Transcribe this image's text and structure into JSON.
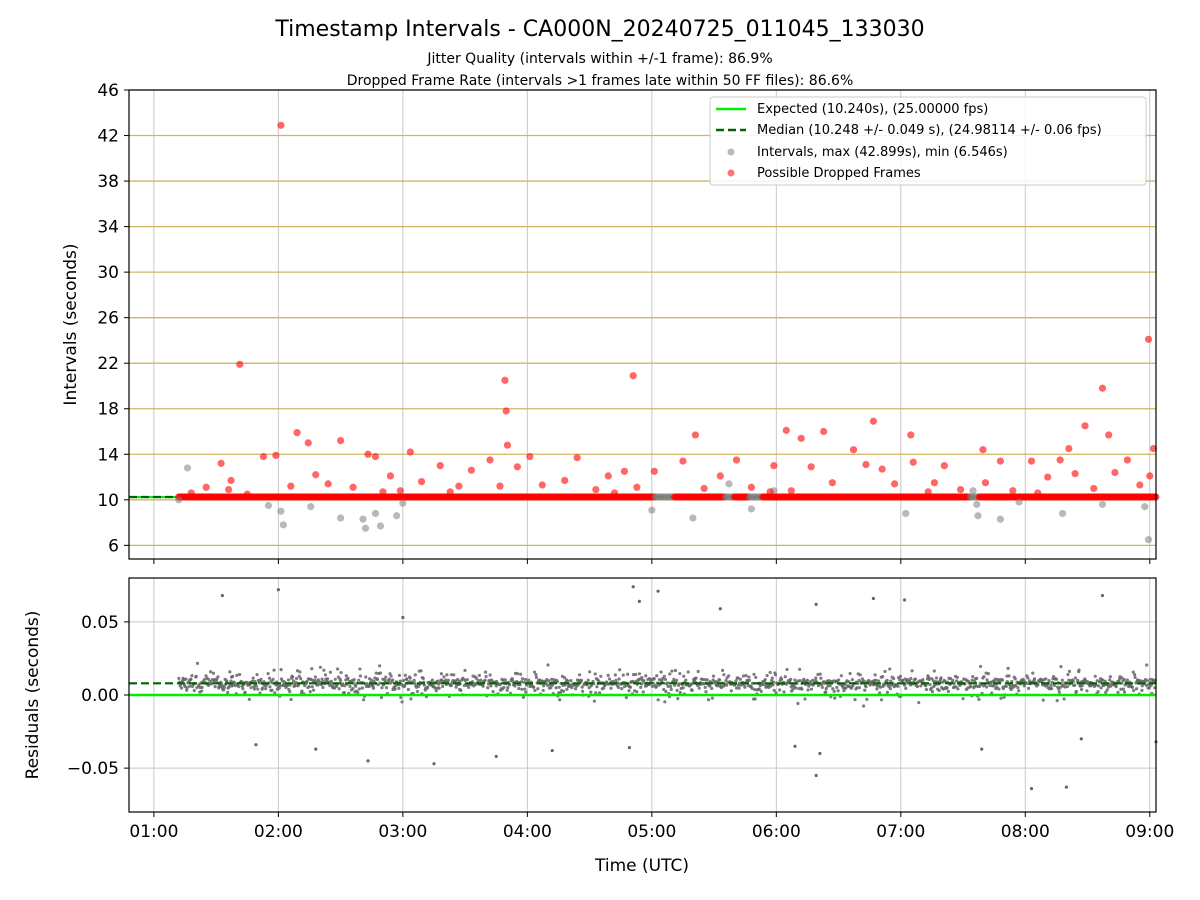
{
  "header": {
    "title": "Timestamp Intervals - CA000N_20240725_011045_133030",
    "subtitle_1": "Jitter Quality (intervals within +/-1 frame): 86.9%",
    "subtitle_2": "Dropped Frame Rate (intervals >1 frames late within 50 FF files): 86.6%"
  },
  "colors": {
    "expected": "#00ee00",
    "median": "#006400",
    "intervals": "#808080",
    "dropped": "#ff0000",
    "hgrid_top": "#d2b464",
    "grid": "#c8c8c8"
  },
  "chart_data": [
    {
      "type": "scatter",
      "title": "",
      "xlabel": "",
      "ylabel": "Intervals (seconds)",
      "x_unit": "hours UTC",
      "xlim": [
        0.8,
        9.05
      ],
      "ylim": [
        4.8,
        46
      ],
      "yticks": [
        6,
        10,
        14,
        18,
        22,
        26,
        30,
        34,
        38,
        42,
        46
      ],
      "xticks": [
        1,
        2,
        3,
        4,
        5,
        6,
        7,
        8,
        9
      ],
      "grid": true,
      "legend_position": "top-right",
      "legend": [
        "Expected (10.240s), (25.00000 fps)",
        "Median (10.248 +/- 0.049 s), (24.98114 +/- 0.06 fps)",
        "Intervals, max (42.899s), min (6.546s)",
        "Possible Dropped Frames"
      ],
      "expected_interval": 10.24,
      "median_interval": 10.248,
      "series": [
        {
          "name": "Possible Dropped Frames",
          "points": [
            [
              1.69,
              21.9
            ],
            [
              2.02,
              42.9
            ],
            [
              2.15,
              15.9
            ],
            [
              2.24,
              15.0
            ],
            [
              2.5,
              15.2
            ],
            [
              2.72,
              14.0
            ],
            [
              3.06,
              14.2
            ],
            [
              3.82,
              20.5
            ],
            [
              3.83,
              17.8
            ],
            [
              3.84,
              14.8
            ],
            [
              4.85,
              20.9
            ],
            [
              5.35,
              15.7
            ],
            [
              6.08,
              16.1
            ],
            [
              6.2,
              15.4
            ],
            [
              6.38,
              16.0
            ],
            [
              6.78,
              16.9
            ],
            [
              7.08,
              15.7
            ],
            [
              7.66,
              14.4
            ],
            [
              8.35,
              14.5
            ],
            [
              8.48,
              16.5
            ],
            [
              8.62,
              19.8
            ],
            [
              8.67,
              15.7
            ],
            [
              8.99,
              24.1
            ],
            [
              9.03,
              14.5
            ],
            [
              1.3,
              10.6
            ],
            [
              1.42,
              11.1
            ],
            [
              1.54,
              13.2
            ],
            [
              1.62,
              11.7
            ],
            [
              1.75,
              10.5
            ],
            [
              1.88,
              13.8
            ],
            [
              1.98,
              13.9
            ],
            [
              2.1,
              11.2
            ],
            [
              2.3,
              12.2
            ],
            [
              2.4,
              11.4
            ],
            [
              2.6,
              11.1
            ],
            [
              2.78,
              13.8
            ],
            [
              2.9,
              12.1
            ],
            [
              2.98,
              10.8
            ],
            [
              3.15,
              11.6
            ],
            [
              3.3,
              13.0
            ],
            [
              3.45,
              11.2
            ],
            [
              3.55,
              12.6
            ],
            [
              3.7,
              13.5
            ],
            [
              3.78,
              11.2
            ],
            [
              3.92,
              12.9
            ],
            [
              4.02,
              13.8
            ],
            [
              4.12,
              11.3
            ],
            [
              4.3,
              11.7
            ],
            [
              4.4,
              13.7
            ],
            [
              4.55,
              10.9
            ],
            [
              4.65,
              12.1
            ],
            [
              4.78,
              12.5
            ],
            [
              4.88,
              11.1
            ],
            [
              5.02,
              12.5
            ],
            [
              5.25,
              13.4
            ],
            [
              5.42,
              11.0
            ],
            [
              5.55,
              12.1
            ],
            [
              5.68,
              13.5
            ],
            [
              5.8,
              11.1
            ],
            [
              5.98,
              13.0
            ],
            [
              6.12,
              10.8
            ],
            [
              6.28,
              12.9
            ],
            [
              6.45,
              11.5
            ],
            [
              6.62,
              14.4
            ],
            [
              6.72,
              13.1
            ],
            [
              6.85,
              12.7
            ],
            [
              6.95,
              11.4
            ],
            [
              7.1,
              13.3
            ],
            [
              7.27,
              11.5
            ],
            [
              7.35,
              13.0
            ],
            [
              7.48,
              10.9
            ],
            [
              7.68,
              11.5
            ],
            [
              7.8,
              13.4
            ],
            [
              7.9,
              10.8
            ],
            [
              8.05,
              13.4
            ],
            [
              8.18,
              12.0
            ],
            [
              8.28,
              13.5
            ],
            [
              8.4,
              12.3
            ],
            [
              8.55,
              11.0
            ],
            [
              8.72,
              12.4
            ],
            [
              8.82,
              13.5
            ],
            [
              8.92,
              11.3
            ],
            [
              9.0,
              12.1
            ],
            [
              1.6,
              10.9
            ],
            [
              2.84,
              10.7
            ],
            [
              3.38,
              10.7
            ],
            [
              4.7,
              10.6
            ],
            [
              5.95,
              10.7
            ],
            [
              7.22,
              10.7
            ],
            [
              8.1,
              10.6
            ]
          ]
        },
        {
          "name": "Intervals",
          "points": [
            [
              1.2,
              10.0
            ],
            [
              1.27,
              12.8
            ],
            [
              1.92,
              9.5
            ],
            [
              2.04,
              7.8
            ],
            [
              2.02,
              9.0
            ],
            [
              2.26,
              9.4
            ],
            [
              2.5,
              8.4
            ],
            [
              2.68,
              8.3
            ],
            [
              2.7,
              7.5
            ],
            [
              2.78,
              8.8
            ],
            [
              2.82,
              7.7
            ],
            [
              2.95,
              8.6
            ],
            [
              3.0,
              9.7
            ],
            [
              5.0,
              9.1
            ],
            [
              5.33,
              8.4
            ],
            [
              5.8,
              9.2
            ],
            [
              5.98,
              10.8
            ],
            [
              7.04,
              8.8
            ],
            [
              7.62,
              8.6
            ],
            [
              7.61,
              9.6
            ],
            [
              7.8,
              8.3
            ],
            [
              7.95,
              9.8
            ],
            [
              8.3,
              8.8
            ],
            [
              8.62,
              9.6
            ],
            [
              8.96,
              9.4
            ],
            [
              8.99,
              6.5
            ],
            [
              5.62,
              11.4
            ],
            [
              7.58,
              10.8
            ]
          ]
        }
      ]
    },
    {
      "type": "scatter",
      "title": "",
      "xlabel": "Time (UTC)",
      "ylabel": "Residuals (seconds)",
      "x_unit": "hours UTC",
      "xlim": [
        0.8,
        9.05
      ],
      "ylim": [
        -0.08,
        0.08
      ],
      "yticks": [
        -0.05,
        0.0,
        0.05
      ],
      "ytick_labels": [
        "−0.05",
        "0.00",
        "0.05"
      ],
      "xticks": [
        1,
        2,
        3,
        4,
        5,
        6,
        7,
        8,
        9
      ],
      "xtick_labels": [
        "01:00",
        "02:00",
        "03:00",
        "04:00",
        "05:00",
        "06:00",
        "07:00",
        "08:00",
        "09:00"
      ],
      "grid": true,
      "expected_residual": 0.0,
      "median_residual": 0.008,
      "residual_spread": 0.049,
      "sample_count": 1500,
      "extreme_points": [
        [
          1.55,
          0.068
        ],
        [
          2.0,
          0.072
        ],
        [
          3.0,
          0.053
        ],
        [
          4.85,
          0.074
        ],
        [
          4.9,
          0.064
        ],
        [
          5.05,
          0.071
        ],
        [
          5.55,
          0.059
        ],
        [
          6.32,
          0.062
        ],
        [
          6.78,
          0.066
        ],
        [
          7.03,
          0.065
        ],
        [
          8.62,
          0.068
        ],
        [
          1.82,
          -0.034
        ],
        [
          2.3,
          -0.037
        ],
        [
          2.72,
          -0.045
        ],
        [
          3.25,
          -0.047
        ],
        [
          3.75,
          -0.042
        ],
        [
          4.2,
          -0.038
        ],
        [
          4.82,
          -0.036
        ],
        [
          6.15,
          -0.035
        ],
        [
          6.35,
          -0.04
        ],
        [
          6.32,
          -0.055
        ],
        [
          7.65,
          -0.037
        ],
        [
          8.05,
          -0.064
        ],
        [
          8.33,
          -0.063
        ],
        [
          8.45,
          -0.03
        ],
        [
          9.05,
          -0.032
        ]
      ]
    }
  ]
}
